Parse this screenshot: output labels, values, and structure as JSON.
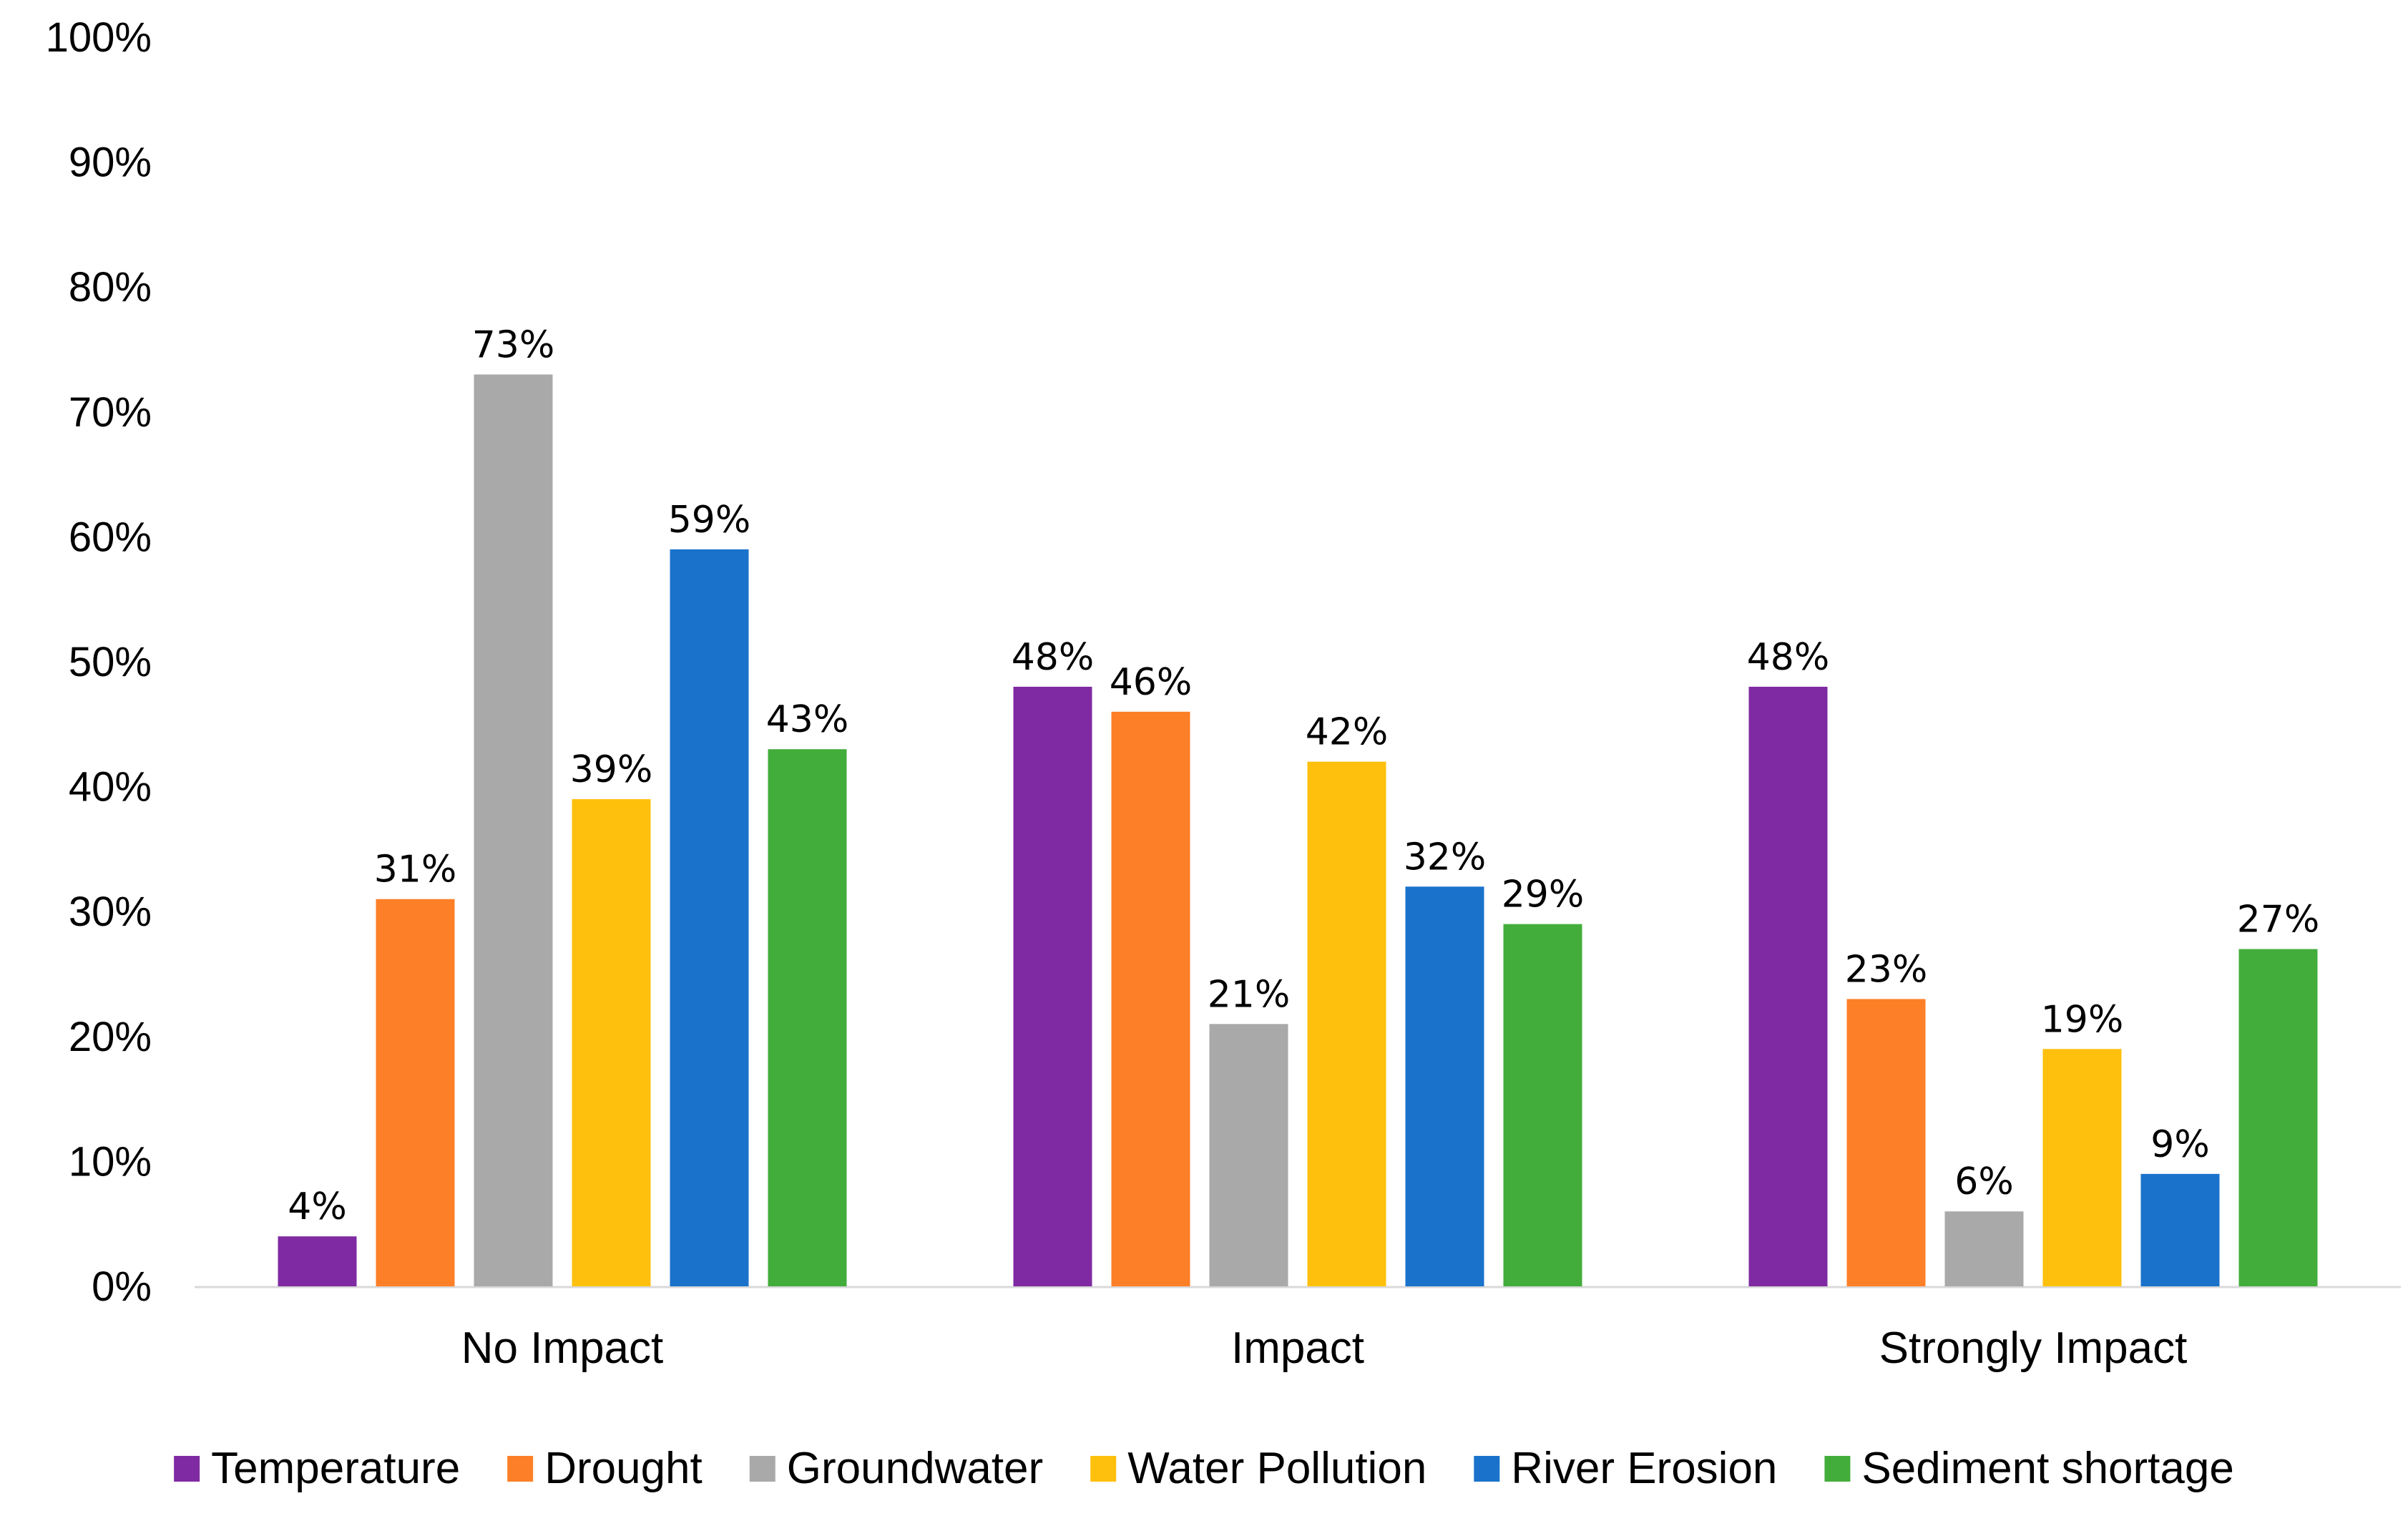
{
  "chart_data": {
    "type": "bar",
    "title": "",
    "xlabel": "",
    "ylabel": "",
    "ylim": [
      0,
      100
    ],
    "ytick_step": 10,
    "value_format": "percent",
    "grid": false,
    "legend_position": "bottom",
    "categories": [
      "No Impact",
      "Impact",
      "Strongly Impact"
    ],
    "series": [
      {
        "name": "Temperature",
        "color": "#7f2aa2",
        "values": [
          4,
          48,
          48
        ]
      },
      {
        "name": "Drought",
        "color": "#fd7f27",
        "values": [
          31,
          46,
          23
        ]
      },
      {
        "name": "Groundwater",
        "color": "#a9a9a9",
        "values": [
          73,
          21,
          6
        ]
      },
      {
        "name": "Water Pollution",
        "color": "#fec00d",
        "values": [
          39,
          42,
          19
        ]
      },
      {
        "name": "River Erosion",
        "color": "#1a72cb",
        "values": [
          59,
          32,
          9
        ]
      },
      {
        "name": "Sediment shortage",
        "color": "#43ad3b",
        "values": [
          43,
          29,
          27
        ]
      }
    ]
  }
}
